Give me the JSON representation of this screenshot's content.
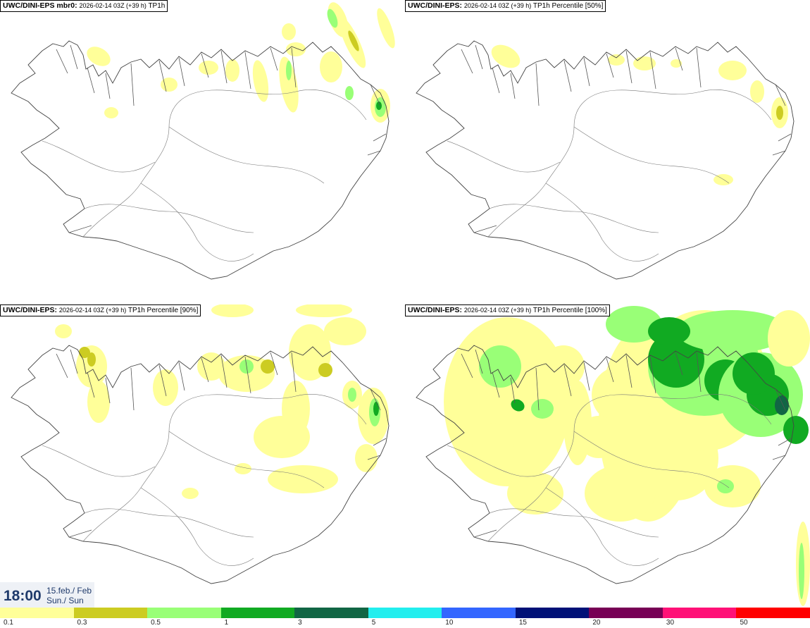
{
  "panels": [
    {
      "model": "UWC/DINI-EPS mbr0",
      "sep": ": ",
      "run": "2026-02-14 03Z (+39 h)",
      "field": "TP1h"
    },
    {
      "model": "UWC/DINI-EPS",
      "sep": ": ",
      "run": "2026-02-14 03Z (+39 h)",
      "field": "TP1h Percentile [50%]"
    },
    {
      "model": "UWC/DINI-EPS",
      "sep": ": ",
      "run": "2026-02-14 03Z (+39 h)",
      "field": "TP1h Percentile [90%]"
    },
    {
      "model": "UWC/DINI-EPS",
      "sep": ": ",
      "run": "2026-02-14 03Z (+39 h)",
      "field": "TP1h Percentile [100%]"
    }
  ],
  "valid_time": {
    "time": "18:00",
    "date": "15.feb./ Feb",
    "weekday": "Sun./ Sun"
  },
  "colorbar": {
    "colors": [
      "#ffff99",
      "#cccc22",
      "#99ff77",
      "#11aa22",
      "#116644",
      "#22eeee",
      "#3366ff",
      "#001177",
      "#770055",
      "#ff1177",
      "#ff0000"
    ],
    "ticks": [
      "0.1",
      "0.3",
      "0.5",
      "1",
      "3",
      "5",
      "10",
      "15",
      "20",
      "30",
      "50"
    ]
  }
}
